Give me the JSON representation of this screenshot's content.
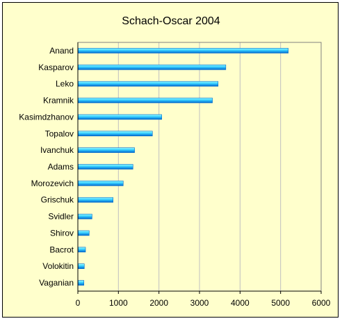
{
  "chart_data": {
    "type": "bar",
    "orientation": "horizontal",
    "title": "Schach-Oscar 2004",
    "categories": [
      "Anand",
      "Kasparov",
      "Leko",
      "Kramnik",
      "Kasimdzhanov",
      "Topalov",
      "Ivanchuk",
      "Adams",
      "Morozevich",
      "Grischuk",
      "Svidler",
      "Shirov",
      "Bacrot",
      "Volokitin",
      "Vaganian"
    ],
    "values": [
      5180,
      3640,
      3450,
      3310,
      2060,
      1830,
      1390,
      1350,
      1110,
      860,
      340,
      270,
      180,
      150,
      140
    ],
    "xlabel": "",
    "ylabel": "",
    "xlim": [
      0,
      6000
    ],
    "xticks": [
      0,
      1000,
      2000,
      3000,
      4000,
      5000,
      6000
    ],
    "grid": "vertical",
    "legend": "none",
    "colors": {
      "background": "#FFFFCC",
      "plot_border": "#808080",
      "grid": "#C0C0C0",
      "bar_light": "#99FFFF",
      "bar_mid": "#33CCFF",
      "bar_dark": "#0066CC"
    }
  }
}
